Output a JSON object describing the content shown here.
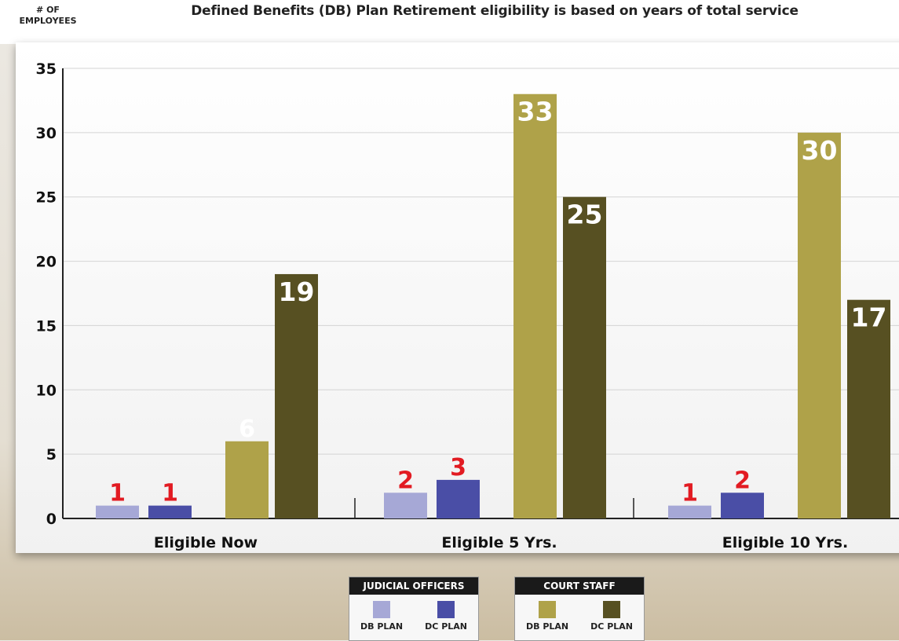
{
  "header": {
    "y_axis_title_line1": "# OF",
    "y_axis_title_line2": "EMPLOYEES",
    "title": "Defined Benefits (DB) Plan Retirement eligibility is based on years of total service"
  },
  "legend": {
    "groups": [
      {
        "title": "JUDICIAL OFFICERS",
        "items": [
          {
            "label": "DB PLAN",
            "color": "#a6a8d6"
          },
          {
            "label": "DC PLAN",
            "color": "#4a4ea6"
          }
        ]
      },
      {
        "title": "COURT STAFF",
        "items": [
          {
            "label": "DB PLAN",
            "color": "#afa249"
          },
          {
            "label": "DC PLAN",
            "color": "#575022"
          }
        ]
      }
    ]
  },
  "chart_data": {
    "type": "bar",
    "categories": [
      "Eligible Now",
      "Eligible 5 Yrs.",
      "Eligible 10 Yrs."
    ],
    "series": [
      {
        "color": "#a6a8d6",
        "label_color": "#e21b22",
        "values": [
          1,
          2,
          1
        ]
      },
      {
        "color": "#4a4ea6",
        "label_color": "#e21b22",
        "values": [
          1,
          3,
          2
        ]
      },
      {
        "color": "#afa249",
        "label_color": "#ffffff",
        "values": [
          6,
          33,
          30
        ]
      },
      {
        "color": "#575022",
        "label_color": "#ffffff",
        "values": [
          19,
          25,
          17
        ]
      }
    ],
    "y_ticks": [
      0,
      5,
      10,
      15,
      20,
      25,
      30,
      35
    ],
    "ylim": [
      0,
      35
    ],
    "grid": true
  }
}
